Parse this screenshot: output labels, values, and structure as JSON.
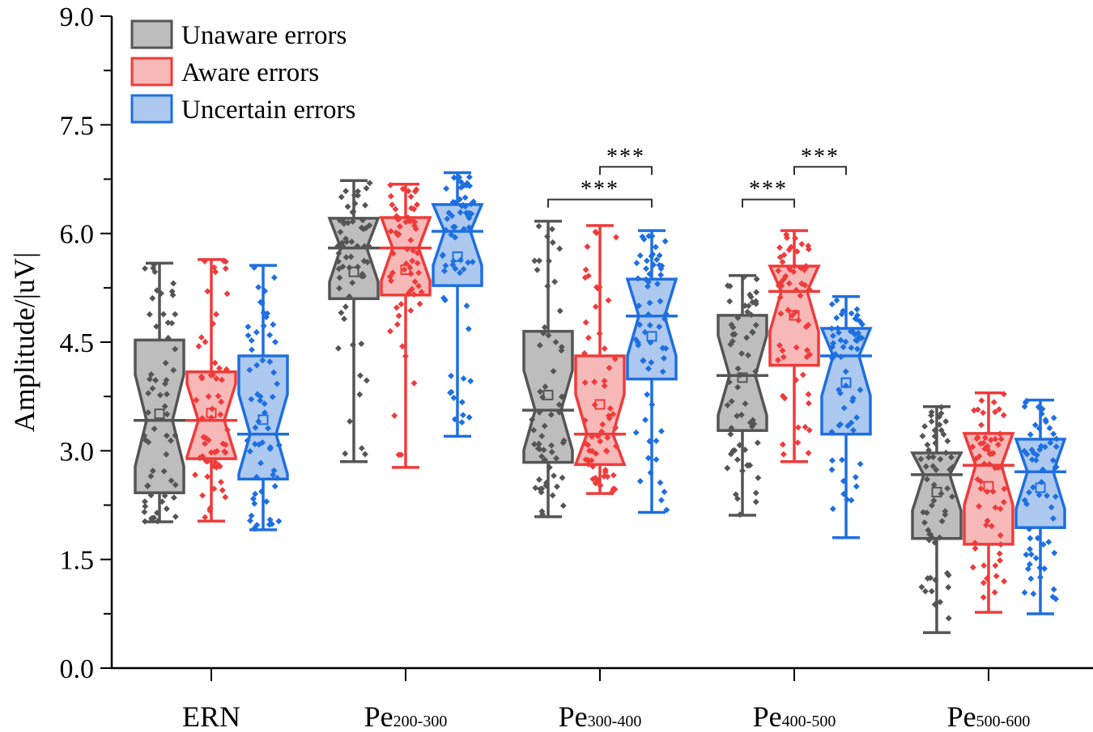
{
  "chart_data": {
    "type": "box",
    "subtype": "notched-boxplot-with-jittered-points",
    "title": "",
    "xlabel": "",
    "ylabel": "Amplitude/|uV|",
    "ylim": [
      0.0,
      9.0
    ],
    "yticks": [
      "0.0",
      "1.5",
      "3.0",
      "4.5",
      "6.0",
      "7.5",
      "9.0"
    ],
    "grid": false,
    "legend_position": "top-left",
    "categories": [
      {
        "main": "ERN",
        "sub": ""
      },
      {
        "main": "Pe",
        "sub": "200-300"
      },
      {
        "main": "Pe",
        "sub": "300-400"
      },
      {
        "main": "Pe",
        "sub": "400-500"
      },
      {
        "main": "Pe",
        "sub": "500-600"
      }
    ],
    "series": [
      {
        "name": "Unaware errors",
        "stroke": "#555555",
        "fill": "#bdbdbd",
        "boxes": [
          {
            "min": 2.02,
            "q1": 2.42,
            "median": 3.42,
            "q3": 4.53,
            "max": 5.59,
            "mean": 3.51
          },
          {
            "min": 2.85,
            "q1": 5.1,
            "median": 5.8,
            "q3": 6.21,
            "max": 6.73,
            "mean": 5.47
          },
          {
            "min": 2.09,
            "q1": 2.84,
            "median": 3.56,
            "q3": 4.65,
            "max": 6.17,
            "mean": 3.77
          },
          {
            "min": 2.11,
            "q1": 3.28,
            "median": 4.04,
            "q3": 4.87,
            "max": 5.42,
            "mean": 4.01
          },
          {
            "min": 0.49,
            "q1": 1.79,
            "median": 2.67,
            "q3": 2.97,
            "max": 3.61,
            "mean": 2.43
          }
        ]
      },
      {
        "name": "Aware errors",
        "stroke": "#ef3b3b",
        "fill": "#f7b8b8",
        "boxes": [
          {
            "min": 2.03,
            "q1": 2.89,
            "median": 3.42,
            "q3": 4.09,
            "max": 5.64,
            "mean": 3.52
          },
          {
            "min": 2.77,
            "q1": 5.15,
            "median": 5.8,
            "q3": 6.22,
            "max": 6.68,
            "mean": 5.5
          },
          {
            "min": 2.41,
            "q1": 2.81,
            "median": 3.23,
            "q3": 4.31,
            "max": 6.11,
            "mean": 3.64
          },
          {
            "min": 2.85,
            "q1": 4.18,
            "median": 5.2,
            "q3": 5.55,
            "max": 6.04,
            "mean": 4.87
          },
          {
            "min": 0.77,
            "q1": 1.71,
            "median": 2.8,
            "q3": 3.24,
            "max": 3.8,
            "mean": 2.51
          }
        ]
      },
      {
        "name": "Uncertain errors",
        "stroke": "#1e6fe0",
        "fill": "#adc9f0",
        "boxes": [
          {
            "min": 1.91,
            "q1": 2.61,
            "median": 3.23,
            "q3": 4.31,
            "max": 5.56,
            "mean": 3.43
          },
          {
            "min": 3.2,
            "q1": 5.28,
            "median": 6.03,
            "q3": 6.4,
            "max": 6.84,
            "mean": 5.68
          },
          {
            "min": 2.15,
            "q1": 3.99,
            "median": 4.86,
            "q3": 5.37,
            "max": 6.04,
            "mean": 4.58
          },
          {
            "min": 1.8,
            "q1": 3.23,
            "median": 4.31,
            "q3": 4.69,
            "max": 5.13,
            "mean": 3.94
          },
          {
            "min": 0.75,
            "q1": 1.94,
            "median": 2.71,
            "q3": 3.16,
            "max": 3.7,
            "mean": 2.49
          }
        ]
      }
    ],
    "significance": [
      {
        "category": "Pe 300-400",
        "from": "Aware errors",
        "to": "Uncertain errors",
        "label": "***",
        "bar_y": 6.92
      },
      {
        "category": "Pe 300-400",
        "from": "Unaware errors",
        "to": "Uncertain errors",
        "label": "***",
        "bar_y": 6.47
      },
      {
        "category": "Pe 400-500",
        "from": "Unaware errors",
        "to": "Aware errors",
        "label": "***",
        "bar_y": 6.47
      },
      {
        "category": "Pe 400-500",
        "from": "Aware errors",
        "to": "Uncertain errors",
        "label": "***",
        "bar_y": 6.92
      }
    ]
  }
}
